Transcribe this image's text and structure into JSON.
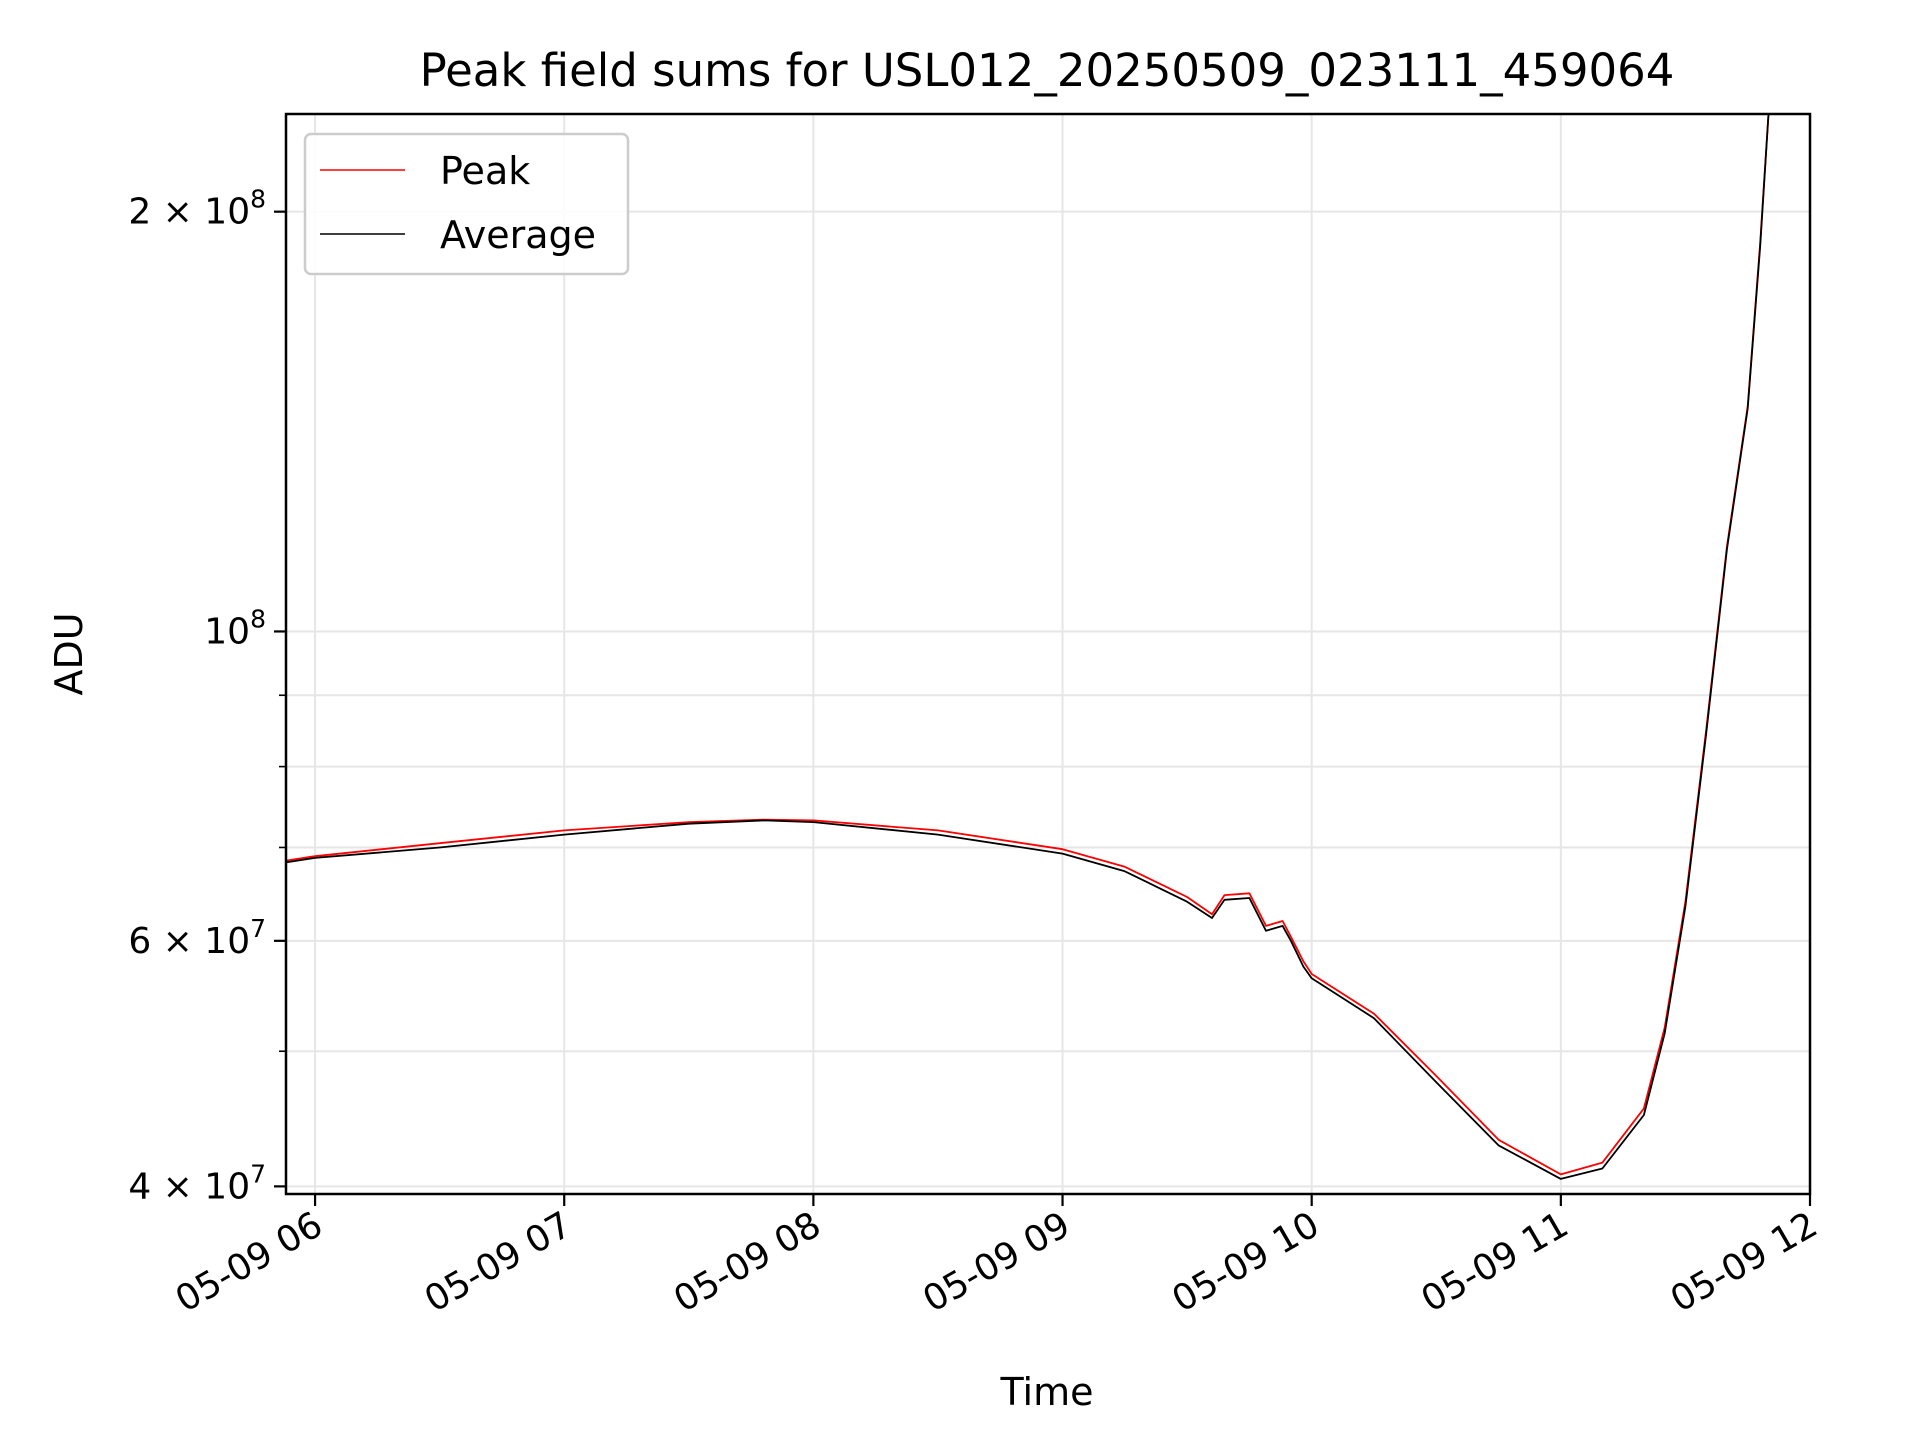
{
  "chart_data": {
    "type": "line",
    "title": "Peak field sums for USL012_20250509_023111_459064",
    "xlabel": "Time",
    "ylabel": "ADU",
    "y_scale": "log",
    "ylim": [
      39500000,
      235000000
    ],
    "xlim": [
      "05-09 05:53",
      "05-09 12:00"
    ],
    "grid": true,
    "legend_position": "top-left",
    "x_ticks": [
      {
        "value": "05-09 06:00",
        "label": "05-09 06"
      },
      {
        "value": "05-09 07:00",
        "label": "05-09 07"
      },
      {
        "value": "05-09 08:00",
        "label": "05-09 08"
      },
      {
        "value": "05-09 09:00",
        "label": "05-09 09"
      },
      {
        "value": "05-09 10:00",
        "label": "05-09 10"
      },
      {
        "value": "05-09 11:00",
        "label": "05-09 11"
      },
      {
        "value": "05-09 12:00",
        "label": "05-09 12"
      }
    ],
    "y_ticks_major": [
      {
        "value": 40000000,
        "base": "4 × 10",
        "exp": "7"
      },
      {
        "value": 60000000,
        "base": "6 × 10",
        "exp": "7"
      },
      {
        "value": 100000000,
        "base": "10",
        "exp": "8"
      },
      {
        "value": 200000000,
        "base": "2 × 10",
        "exp": "8"
      }
    ],
    "y_ticks_minor": [
      50000000,
      70000000,
      80000000,
      90000000
    ],
    "series": [
      {
        "name": "Peak",
        "color": "#ff0000",
        "x": [
          "05-09 05:53",
          "05-09 06:00",
          "05-09 06:30",
          "05-09 07:00",
          "05-09 07:30",
          "05-09 07:48",
          "05-09 08:00",
          "05-09 08:30",
          "05-09 09:00",
          "05-09 09:15",
          "05-09 09:30",
          "05-09 09:36",
          "05-09 09:39",
          "05-09 09:45",
          "05-09 09:49",
          "05-09 09:53",
          "05-09 09:55",
          "05-09 09:58",
          "05-09 10:00",
          "05-09 10:15",
          "05-09 10:30",
          "05-09 10:45",
          "05-09 11:00",
          "05-09 11:10",
          "05-09 11:20",
          "05-09 11:25",
          "05-09 11:30",
          "05-09 11:35",
          "05-09 11:40",
          "05-09 11:45",
          "05-09 11:48",
          "05-09 11:50"
        ],
        "values": [
          68500000,
          69000000,
          70500000,
          72000000,
          73000000,
          73300000,
          73200000,
          72000000,
          69800000,
          67800000,
          64500000,
          62700000,
          64700000,
          64900000,
          61500000,
          62000000,
          60400000,
          58000000,
          56800000,
          53200000,
          48000000,
          43200000,
          40800000,
          41600000,
          45500000,
          52000000,
          64000000,
          85000000,
          115000000,
          145000000,
          190000000,
          235000000
        ]
      },
      {
        "name": "Average",
        "color": "#000000",
        "x": [
          "05-09 05:53",
          "05-09 06:00",
          "05-09 06:30",
          "05-09 07:00",
          "05-09 07:30",
          "05-09 07:48",
          "05-09 08:00",
          "05-09 08:30",
          "05-09 09:00",
          "05-09 09:15",
          "05-09 09:30",
          "05-09 09:36",
          "05-09 09:39",
          "05-09 09:45",
          "05-09 09:49",
          "05-09 09:53",
          "05-09 09:55",
          "05-09 09:58",
          "05-09 10:00",
          "05-09 10:15",
          "05-09 10:30",
          "05-09 10:45",
          "05-09 11:00",
          "05-09 11:10",
          "05-09 11:20",
          "05-09 11:25",
          "05-09 11:30",
          "05-09 11:35",
          "05-09 11:40",
          "05-09 11:45",
          "05-09 11:48",
          "05-09 11:50"
        ],
        "values": [
          68300000,
          68800000,
          70000000,
          71500000,
          72800000,
          73200000,
          73000000,
          71500000,
          69300000,
          67300000,
          64000000,
          62300000,
          64200000,
          64400000,
          61000000,
          61500000,
          60000000,
          57500000,
          56400000,
          52800000,
          47500000,
          42800000,
          40500000,
          41200000,
          45000000,
          51500000,
          63500000,
          84500000,
          114500000,
          144500000,
          189000000,
          235000000
        ]
      }
    ]
  }
}
